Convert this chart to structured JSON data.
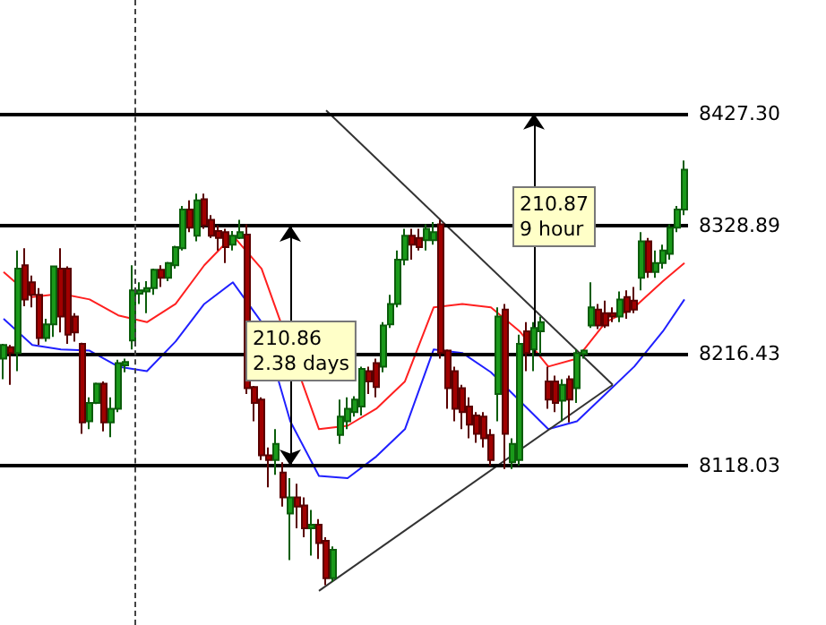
{
  "chart_data": {
    "type": "candlestick",
    "categories": [
      null,
      null,
      null,
      null,
      null,
      null,
      null,
      null,
      null,
      null,
      null,
      null,
      null,
      null,
      null,
      null,
      null,
      null,
      null,
      null,
      null,
      null,
      null,
      null,
      null,
      null,
      null,
      null,
      null,
      null,
      null,
      null,
      null,
      null,
      null,
      null,
      null,
      null,
      null,
      null,
      null,
      null,
      null,
      null,
      null,
      null,
      null,
      null,
      null,
      null,
      null,
      null,
      null,
      null,
      null,
      null,
      null,
      null,
      null,
      null,
      null,
      null,
      null,
      null,
      null,
      null,
      null,
      null,
      null,
      null,
      null,
      null,
      null,
      null,
      null,
      null,
      null,
      null,
      null,
      null,
      null,
      null,
      null,
      null,
      null,
      null,
      null,
      null,
      null,
      null,
      null,
      null,
      null,
      null,
      null,
      null
    ],
    "ohlc": [
      [
        8212,
        8225,
        8194,
        8224
      ],
      [
        8222,
        8224,
        8189,
        8217
      ],
      [
        8217,
        8307,
        8201,
        8291
      ],
      [
        8294,
        8309,
        8258,
        8264
      ],
      [
        8279,
        8285,
        8257,
        8268
      ],
      [
        8268,
        8274,
        8224,
        8230
      ],
      [
        8230,
        8247,
        8227,
        8242
      ],
      [
        8242,
        8293,
        8231,
        8293
      ],
      [
        8291,
        8309,
        8235,
        8249
      ],
      [
        8291,
        8293,
        8225,
        8233
      ],
      [
        8249,
        8252,
        8227,
        8235
      ],
      [
        8225,
        8226,
        8146,
        8156
      ],
      [
        8157,
        8178,
        8150,
        8173
      ],
      [
        8173,
        8191,
        8172,
        8190
      ],
      [
        8190,
        8192,
        8148,
        8156
      ],
      [
        8156,
        8178,
        8143,
        8168
      ],
      [
        8168,
        8211,
        8165,
        8208
      ],
      [
        8206,
        8212,
        8200,
        8209
      ],
      [
        8228,
        8294,
        8220,
        8272
      ],
      [
        8269,
        8279,
        8260,
        8272
      ],
      [
        8271,
        8280,
        8252,
        8274
      ],
      [
        8274,
        8291,
        8268,
        8290
      ],
      [
        8290,
        8294,
        8275,
        8283
      ],
      [
        8283,
        8297,
        8280,
        8296
      ],
      [
        8294,
        8311,
        8291,
        8310
      ],
      [
        8309,
        8346,
        8307,
        8343
      ],
      [
        8343,
        8351,
        8323,
        8327
      ],
      [
        8320,
        8357,
        8315,
        8351
      ],
      [
        8352,
        8357,
        8326,
        8329
      ],
      [
        8334,
        8338,
        8318,
        8320
      ],
      [
        8324,
        8329,
        8307,
        8318
      ],
      [
        8323,
        8326,
        8296,
        8310
      ],
      [
        8312,
        8324,
        8307,
        8320
      ],
      [
        8318,
        8334,
        8317,
        8323
      ],
      [
        8321,
        8330,
        8181,
        8186
      ],
      [
        8187,
        8188,
        8157,
        8173
      ],
      [
        8176,
        8178,
        8123,
        8127
      ],
      [
        8127,
        8134,
        8099,
        8123
      ],
      [
        8123,
        8150,
        8110,
        8137
      ],
      [
        8112,
        8121,
        8082,
        8090
      ],
      [
        8076,
        8107,
        8035,
        8090
      ],
      [
        8090,
        8102,
        8063,
        8082
      ],
      [
        8083,
        8090,
        8055,
        8063
      ],
      [
        8063,
        8079,
        8039,
        8066
      ],
      [
        8066,
        8071,
        8036,
        8050
      ],
      [
        8052,
        8055,
        8013,
        8019
      ],
      [
        8019,
        8047,
        8016,
        8044
      ],
      [
        8145,
        8176,
        8137,
        8161
      ],
      [
        8157,
        8178,
        8150,
        8168
      ],
      [
        8165,
        8179,
        8161,
        8176
      ],
      [
        8170,
        8205,
        8162,
        8203
      ],
      [
        8201,
        8205,
        8181,
        8192
      ],
      [
        8208,
        8212,
        8178,
        8187
      ],
      [
        8205,
        8244,
        8200,
        8241
      ],
      [
        8242,
        8268,
        8239,
        8260
      ],
      [
        8260,
        8307,
        8257,
        8299
      ],
      [
        8299,
        8326,
        8294,
        8320
      ],
      [
        8320,
        8326,
        8299,
        8312
      ],
      [
        8318,
        8326,
        8307,
        8310
      ],
      [
        8316,
        8330,
        8307,
        8326
      ],
      [
        8316,
        8332,
        8312,
        8323
      ],
      [
        8330,
        8334,
        8212,
        8217
      ],
      [
        8219,
        8220,
        8168,
        8186
      ],
      [
        8201,
        8205,
        8157,
        8168
      ],
      [
        8186,
        8189,
        8150,
        8165
      ],
      [
        8170,
        8178,
        8142,
        8154
      ],
      [
        8162,
        8165,
        8138,
        8146
      ],
      [
        8161,
        8165,
        8134,
        8142
      ],
      [
        8145,
        8150,
        8118,
        8123
      ],
      [
        8181,
        8257,
        8157,
        8249
      ],
      [
        8255,
        8260,
        8115,
        8146
      ],
      [
        8121,
        8142,
        8115,
        8137
      ],
      [
        8123,
        8233,
        8118,
        8225
      ],
      [
        8236,
        8244,
        8201,
        8217
      ],
      [
        8220,
        8244,
        8201,
        8239
      ],
      [
        8236,
        8249,
        8216,
        8244
      ],
      [
        8192,
        8205,
        8168,
        8176
      ],
      [
        8192,
        8197,
        8165,
        8173
      ],
      [
        8175,
        8194,
        8157,
        8189
      ],
      [
        8194,
        8197,
        8156,
        8176
      ],
      [
        8186,
        8220,
        8173,
        8217
      ],
      [
        8216,
        8220,
        8212,
        8219
      ],
      [
        8241,
        8279,
        8239,
        8257
      ],
      [
        8255,
        8260,
        8238,
        8241
      ],
      [
        8252,
        8263,
        8239,
        8241
      ],
      [
        8252,
        8257,
        8244,
        8249
      ],
      [
        8249,
        8271,
        8244,
        8264
      ],
      [
        8266,
        8272,
        8247,
        8253
      ],
      [
        8263,
        8275,
        8252,
        8255
      ],
      [
        8283,
        8323,
        8272,
        8315
      ],
      [
        8315,
        8318,
        8283,
        8288
      ],
      [
        8288,
        8307,
        8283,
        8296
      ],
      [
        8296,
        8312,
        8291,
        8307
      ],
      [
        8304,
        8330,
        8299,
        8327
      ],
      [
        8327,
        8346,
        8323,
        8343
      ],
      [
        8343,
        8386,
        8338,
        8378
      ]
    ],
    "series": [
      {
        "type": "line",
        "color": "#ff2020",
        "values": [
          8288,
          null,
          null,
          null,
          8266,
          null,
          null,
          null,
          8269,
          null,
          null,
          null,
          8264,
          null,
          null,
          null,
          8250,
          null,
          null,
          null,
          8244,
          null,
          null,
          null,
          8260,
          null,
          null,
          null,
          8294,
          null,
          null,
          null,
          8320,
          null,
          null,
          null,
          8291,
          null,
          null,
          null,
          null,
          null,
          null,
          null,
          8150,
          null,
          null,
          null,
          8153,
          null,
          null,
          null,
          8168,
          null,
          null,
          null,
          8192,
          null,
          null,
          null,
          8257,
          null,
          null,
          null,
          8260,
          null,
          null,
          null,
          8257,
          null,
          null,
          null,
          8236,
          null,
          null,
          null,
          8205,
          null,
          null,
          null,
          8212,
          null,
          null,
          null,
          8244,
          null,
          null,
          null,
          8257,
          null,
          null,
          null,
          8280,
          null,
          null,
          8296
        ]
      },
      {
        "type": "line",
        "color": "#2020ff",
        "values": [
          8247,
          null,
          null,
          null,
          8224,
          null,
          null,
          null,
          8220,
          null,
          null,
          null,
          8219,
          null,
          null,
          null,
          8205,
          null,
          null,
          null,
          8201,
          null,
          null,
          null,
          8227,
          null,
          null,
          null,
          8260,
          null,
          null,
          null,
          8279,
          null,
          null,
          null,
          8244,
          null,
          null,
          null,
          8157,
          null,
          null,
          null,
          8109,
          null,
          null,
          null,
          8107,
          null,
          null,
          null,
          8126,
          null,
          null,
          null,
          8150,
          null,
          null,
          null,
          8220,
          null,
          null,
          null,
          8217,
          null,
          null,
          null,
          8200,
          null,
          null,
          null,
          8175,
          null,
          null,
          null,
          8150,
          null,
          null,
          null,
          8157,
          null,
          null,
          null,
          8181,
          null,
          null,
          null,
          8205,
          null,
          null,
          null,
          8236,
          null,
          null,
          8264
        ]
      },
      {
        "type": "line",
        "color": "#333333",
        "values": [
          null,
          null,
          null,
          null,
          null,
          null,
          null,
          null,
          null,
          null,
          null,
          null,
          null,
          null,
          null,
          null,
          null,
          null,
          null,
          null,
          null,
          null,
          null,
          null,
          null,
          null,
          null,
          null,
          null,
          null,
          null,
          null,
          null,
          null,
          null,
          null,
          null,
          null,
          null,
          null,
          null,
          null,
          null,
          null,
          null,
          8430,
          null,
          null,
          null,
          null,
          null,
          null,
          null,
          null,
          null,
          null,
          null,
          null,
          null,
          null,
          null,
          null,
          null,
          null,
          null,
          null,
          null,
          null,
          null,
          null,
          null,
          null,
          null,
          null,
          null,
          null,
          null,
          null,
          null,
          null,
          null,
          null,
          null,
          null,
          null,
          8189,
          null,
          null,
          null,
          null,
          null,
          null,
          null,
          null,
          null,
          null
        ]
      },
      {
        "type": "line",
        "color": "#333333",
        "values": [
          null,
          null,
          null,
          null,
          null,
          null,
          null,
          null,
          null,
          null,
          null,
          null,
          null,
          null,
          null,
          null,
          null,
          null,
          null,
          null,
          null,
          null,
          null,
          null,
          null,
          null,
          null,
          null,
          null,
          null,
          null,
          null,
          null,
          null,
          null,
          null,
          null,
          null,
          null,
          null,
          null,
          null,
          null,
          null,
          8008,
          null,
          null,
          null,
          null,
          null,
          null,
          null,
          null,
          null,
          null,
          null,
          null,
          null,
          null,
          null,
          null,
          null,
          null,
          null,
          null,
          null,
          null,
          null,
          null,
          null,
          null,
          null,
          null,
          null,
          null,
          null,
          null,
          null,
          null,
          null,
          null,
          null,
          null,
          null,
          null,
          8189,
          null,
          null,
          null,
          null,
          null,
          null,
          null,
          null,
          null,
          null
        ]
      }
    ],
    "ylim": [
      7978,
      8527
    ],
    "yticks": [
      8118.03,
      8216.43,
      8328.89,
      {
        "value": 8427.3,
        "label": "8427.30"
      }
    ],
    "ref_lines": [
      {
        "axis": "y",
        "value": 8328.89,
        "color": "#000000"
      },
      {
        "axis": "y",
        "value": 8118.03,
        "color": "#000000"
      },
      {
        "axis": "y",
        "value": 8216.43,
        "color": "#000000"
      },
      {
        "axis": "y",
        "value": 8427.3,
        "color": "#000000"
      }
    ],
    "annotations": [
      "210.86\n2.38 days",
      "210.87\n9 hour"
    ],
    "grid": false
  }
}
